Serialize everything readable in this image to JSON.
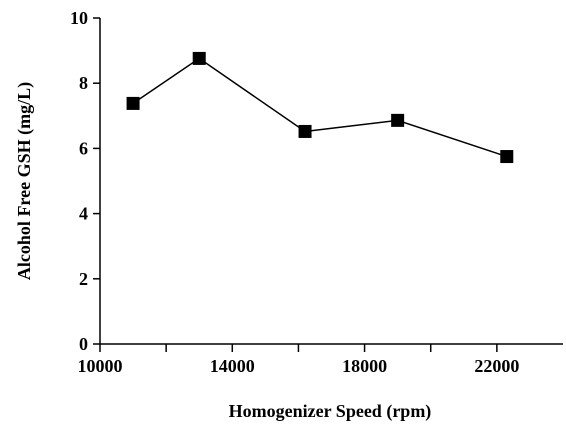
{
  "chart_data": {
    "type": "line",
    "x_label": "Homogenizer Speed (rpm)",
    "y_label": "Alcohol Free GSH (mg/L)",
    "x": [
      11000,
      13000,
      16200,
      19000,
      22300
    ],
    "series": [
      {
        "color": "#000000",
        "values": [
          7.38,
          8.76,
          6.52,
          6.86,
          5.75
        ]
      }
    ],
    "xlim": [
      10000,
      24000
    ],
    "xticks": [
      10000,
      14000,
      18000,
      22000
    ],
    "x_minor_ticks": [
      12000,
      16000,
      20000
    ],
    "ylim": [
      0,
      10
    ],
    "yticks": [
      0,
      2,
      4,
      6,
      8,
      10
    ],
    "grid": false,
    "marker": "square"
  }
}
